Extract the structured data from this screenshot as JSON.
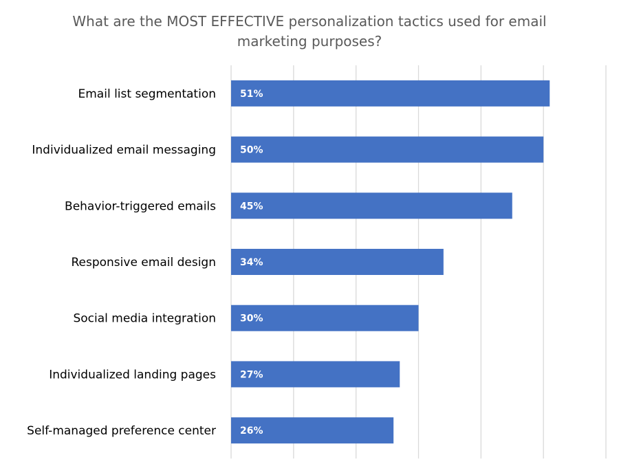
{
  "chart_data": {
    "type": "bar",
    "orientation": "horizontal",
    "title": "What are the MOST EFFECTIVE personalization tactics used for email\nmarketing purposes?",
    "categories": [
      "Email list segmentation",
      "Individualized email messaging",
      "Behavior-triggered emails",
      "Responsive email design",
      "Social media integration",
      "Individualized landing pages",
      "Self-managed preference center"
    ],
    "values": [
      51,
      50,
      45,
      34,
      30,
      27,
      26
    ],
    "data_labels": [
      "51%",
      "50%",
      "45%",
      "34%",
      "30%",
      "27%",
      "26%"
    ],
    "unit": "%",
    "xlim": [
      0,
      60
    ],
    "x_tick_step": 10,
    "grid": true,
    "legend": "none",
    "bar_color": "#4472c4"
  }
}
